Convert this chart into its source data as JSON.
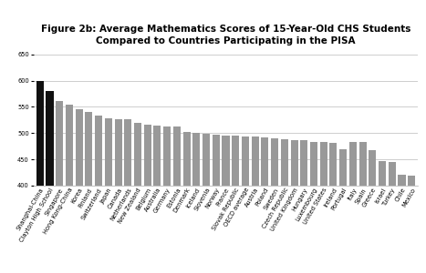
{
  "title": "Figure 2b: Average Mathematics Scores of 15-Year-Old CHS Students\nCompared to Countries Participating in the PISA",
  "categories": [
    "Shanghai-China",
    "Clayton High School",
    "Singapore",
    "Hong Kong-China",
    "Korea",
    "Finland",
    "Switzerland",
    "Japan",
    "Canada",
    "Netherlands",
    "New Zealand",
    "Belgium",
    "Australia",
    "Germany",
    "Estonia",
    "Denmark",
    "Iceland",
    "Slovenia",
    "Norway",
    "France",
    "Slovak Republic",
    "OECD average",
    "Austria",
    "Poland",
    "Sweden",
    "Czech Republic",
    "United Kingdom",
    "Hungary",
    "Luxembourg",
    "United States",
    "Ireland",
    "Portugal",
    "Italy",
    "Spain",
    "Greece",
    "Israel",
    "Turkey",
    "Chile",
    "Mexico"
  ],
  "values": [
    600,
    581,
    562,
    555,
    546,
    541,
    534,
    529,
    527,
    526,
    519,
    516,
    514,
    513,
    512,
    503,
    501,
    498,
    497,
    496,
    495,
    494,
    493,
    492,
    490,
    488,
    487,
    486,
    483,
    483,
    482,
    469,
    483,
    484,
    467,
    447,
    445,
    420,
    419
  ],
  "black_bars": [
    "Shanghai-China",
    "Clayton High School"
  ],
  "bar_color_default": "#999999",
  "bar_color_black": "#111111",
  "ylim": [
    400,
    660
  ],
  "yticks": [
    400,
    450,
    500,
    550,
    600,
    650
  ],
  "background_color": "#ffffff",
  "title_fontsize": 7.5,
  "tick_fontsize": 4.8,
  "grid_color": "#bbbbbb"
}
